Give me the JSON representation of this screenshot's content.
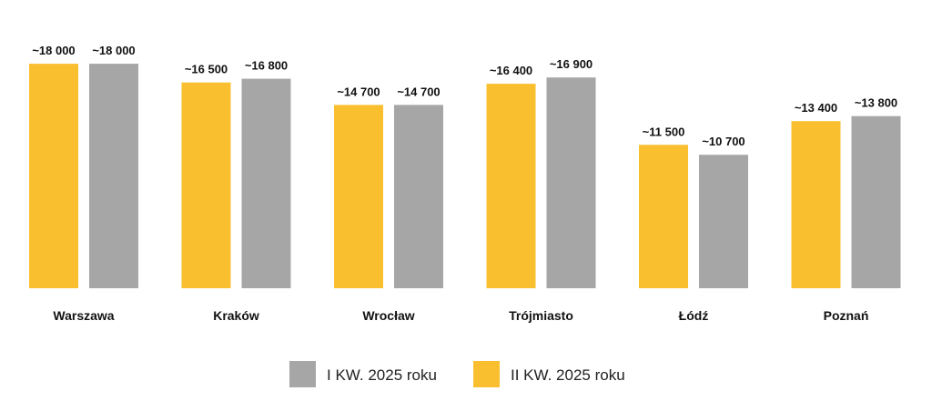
{
  "chart_data": {
    "type": "bar",
    "title": "",
    "xlabel": "",
    "ylabel": "",
    "categories": [
      "Warszawa",
      "Kraków",
      "Wrocław",
      "Trójmiasto",
      "Łódź",
      "Poznań"
    ],
    "series": [
      {
        "name": "II KW. 2025 roku",
        "color": "#F9BF2F",
        "values": [
          18000,
          16500,
          14700,
          16400,
          11500,
          13400
        ],
        "labels": [
          "~18 000",
          "~16 500",
          "~14 700",
          "~16 400",
          "~11 500",
          "~13 400"
        ]
      },
      {
        "name": "I KW. 2025 roku",
        "color": "#A6A6A6",
        "values": [
          18000,
          16800,
          14700,
          16900,
          10700,
          13800
        ],
        "labels": [
          "~18 000",
          "~16 800",
          "~14 700",
          "~16 900",
          "~10 700",
          "~13 800"
        ]
      }
    ],
    "ylim": [
      0,
      18300
    ],
    "grid": false,
    "legend": {
      "placement": "bottom-center",
      "order": [
        "I KW. 2025 roku",
        "II KW. 2025 roku"
      ]
    }
  }
}
